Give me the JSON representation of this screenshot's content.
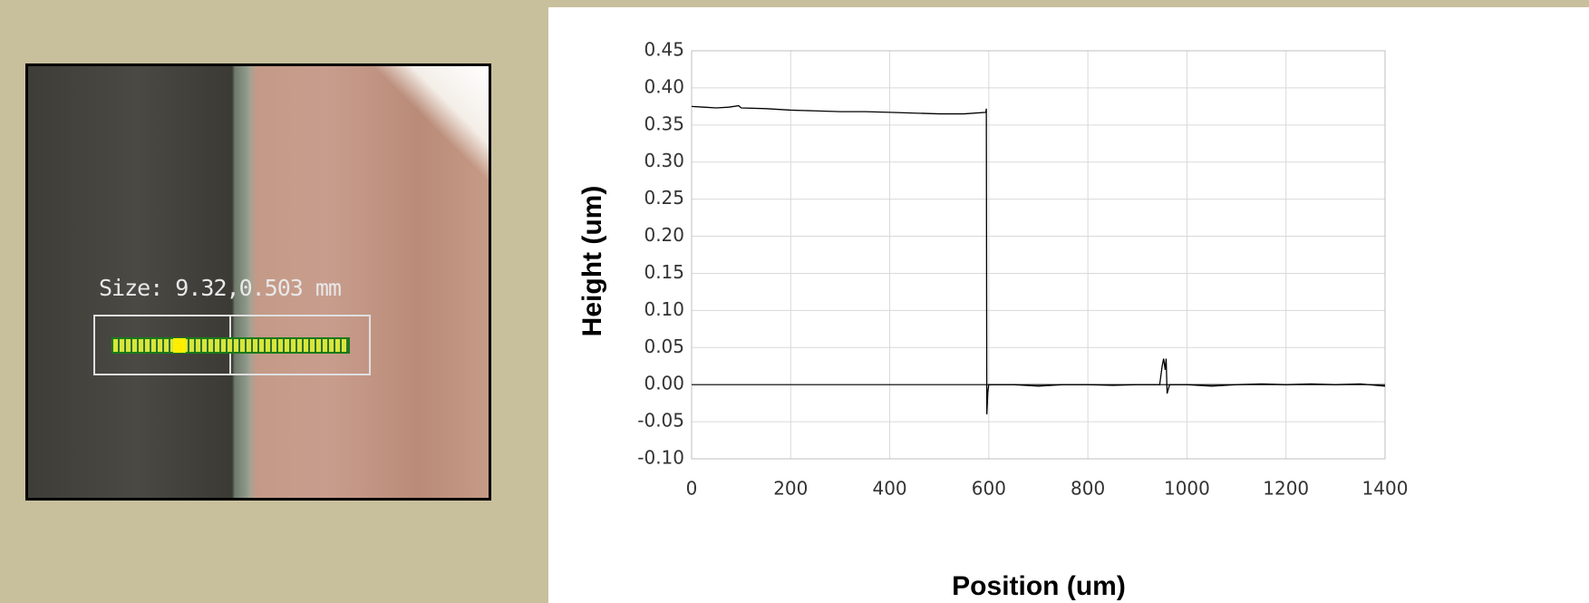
{
  "photo": {
    "label": "Size: 9.32,0.503 mm"
  },
  "chart_data": {
    "type": "line",
    "x_label": "Position (um)",
    "y_label": "Height (um)",
    "x": [
      0,
      25,
      50,
      75,
      95,
      100,
      150,
      200,
      250,
      300,
      350,
      400,
      450,
      500,
      550,
      594,
      595,
      596,
      598,
      600,
      650,
      700,
      750,
      800,
      850,
      900,
      945,
      950,
      953,
      956,
      958,
      960,
      965,
      1000,
      1050,
      1100,
      1150,
      1200,
      1250,
      1300,
      1350,
      1400
    ],
    "values": [
      0.375,
      0.374,
      0.373,
      0.374,
      0.376,
      0.373,
      0.372,
      0.37,
      0.369,
      0.368,
      0.368,
      0.367,
      0.366,
      0.365,
      0.365,
      0.367,
      0.372,
      -0.04,
      -0.01,
      0.0,
      0.0,
      -0.002,
      0.0,
      0.0,
      -0.001,
      0.0,
      0.0,
      0.025,
      0.035,
      0.02,
      0.035,
      -0.012,
      0.0,
      0.0,
      -0.002,
      0.0,
      0.001,
      0.0,
      0.001,
      0.0,
      0.001,
      -0.002
    ],
    "color": "#000000",
    "xlim": [
      0,
      1400
    ],
    "xticks": [
      0,
      200,
      400,
      600,
      800,
      1000,
      1200,
      1400
    ],
    "ylim": [
      -0.1,
      0.45
    ],
    "yticks": [
      {
        "value": -0.1,
        "label": "-0.10"
      },
      {
        "value": -0.05,
        "label": "-0.05"
      },
      {
        "value": 0,
        "label": "0.00"
      },
      {
        "value": 0.05,
        "label": "0.05"
      },
      {
        "value": 0.1,
        "label": "0.10"
      },
      {
        "value": 0.15,
        "label": "0.15"
      },
      {
        "value": 0.2,
        "label": "0.20"
      },
      {
        "value": 0.25,
        "label": "0.25"
      },
      {
        "value": 0.3,
        "label": "0.30"
      },
      {
        "value": 0.35,
        "label": "0.35"
      },
      {
        "value": 0.4,
        "label": "0.40"
      },
      {
        "value": 0.45,
        "label": "0.45"
      }
    ],
    "grid": true
  }
}
